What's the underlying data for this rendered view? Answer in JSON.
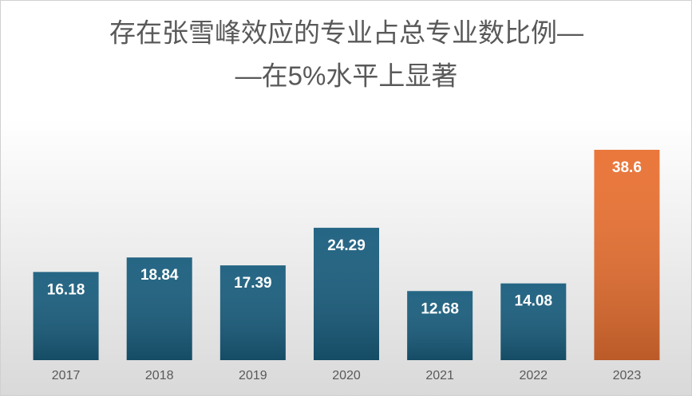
{
  "chart_data": {
    "type": "bar",
    "title": [
      "存在张雪峰效应的专业占总专业数比例—",
      "—在5%水平上显著"
    ],
    "categories": [
      "2017",
      "2018",
      "2019",
      "2020",
      "2021",
      "2022",
      "2023"
    ],
    "values": [
      16.18,
      18.84,
      17.39,
      24.29,
      12.68,
      14.08,
      38.6
    ],
    "colors": [
      "#1a5e7e",
      "#1a5e7e",
      "#1a5e7e",
      "#1a5e7e",
      "#1a5e7e",
      "#1a5e7e",
      "#e97132"
    ]
  }
}
